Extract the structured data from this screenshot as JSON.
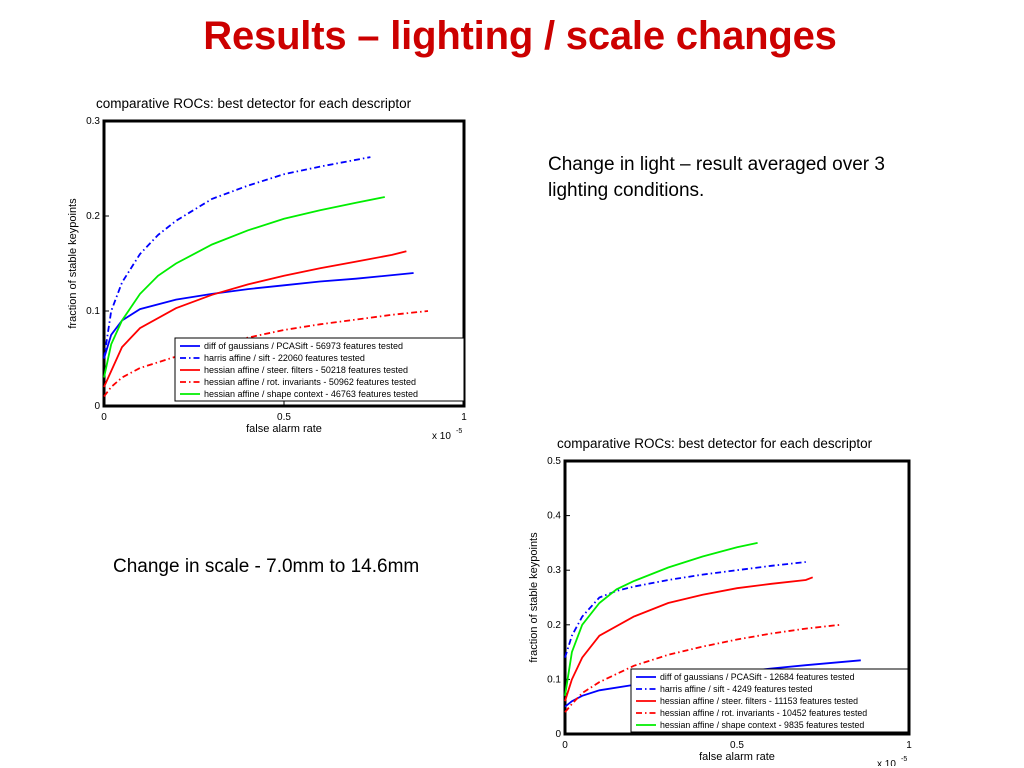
{
  "slide": {
    "title": "Results – lighting / scale changes",
    "caption_light": "Change in light – result averaged over 3 lighting conditions.",
    "caption_scale": "Change in scale - 7.0mm to 14.6mm"
  },
  "colors": {
    "title": "#cc0000",
    "blue": "#0000ff",
    "red": "#ff0000",
    "green": "#00ee00"
  },
  "chart_data": [
    {
      "type": "line",
      "title": "comparative ROCs: best detector for each descriptor",
      "xlabel": "false alarm rate",
      "ylabel": "fraction of stable keypoints",
      "x_multiplier": "x 10",
      "x_multiplier_exp": "-5",
      "xlim": [
        0,
        1
      ],
      "ylim": [
        0,
        0.3
      ],
      "xticks": [
        "0",
        "0.5",
        "1"
      ],
      "yticks": [
        "0",
        "0.1",
        "0.2",
        "0.3"
      ],
      "legend_position": "bottom-right",
      "series": [
        {
          "name": "diff of gaussians / PCASift - 56973 features tested",
          "color": "#0000ff",
          "style": "solid",
          "x": [
            0,
            0.02,
            0.05,
            0.1,
            0.2,
            0.3,
            0.4,
            0.5,
            0.6,
            0.7,
            0.86
          ],
          "y": [
            0.05,
            0.075,
            0.09,
            0.102,
            0.112,
            0.118,
            0.123,
            0.127,
            0.131,
            0.134,
            0.14
          ]
        },
        {
          "name": "harris affine / sift - 22060 features tested",
          "color": "#0000ff",
          "style": "dashdot",
          "x": [
            0,
            0.02,
            0.05,
            0.1,
            0.15,
            0.2,
            0.3,
            0.4,
            0.5,
            0.6,
            0.74
          ],
          "y": [
            0.05,
            0.1,
            0.13,
            0.16,
            0.18,
            0.195,
            0.218,
            0.232,
            0.244,
            0.252,
            0.262
          ]
        },
        {
          "name": "hessian affine / steer. filters - 50218 features tested",
          "color": "#ff0000",
          "style": "solid",
          "x": [
            0,
            0.05,
            0.1,
            0.2,
            0.3,
            0.4,
            0.5,
            0.6,
            0.7,
            0.8,
            0.84
          ],
          "y": [
            0.02,
            0.062,
            0.082,
            0.103,
            0.117,
            0.128,
            0.137,
            0.145,
            0.152,
            0.159,
            0.163
          ]
        },
        {
          "name": "hessian affine / rot. invariants - 50962 features tested",
          "color": "#ff0000",
          "style": "dashdot",
          "x": [
            0,
            0.02,
            0.05,
            0.1,
            0.2,
            0.3,
            0.4,
            0.5,
            0.6,
            0.7,
            0.8,
            0.9
          ],
          "y": [
            0.01,
            0.02,
            0.03,
            0.04,
            0.052,
            0.063,
            0.072,
            0.08,
            0.086,
            0.091,
            0.096,
            0.1
          ]
        },
        {
          "name": "hessian affine / shape context - 46763 features tested",
          "color": "#00ee00",
          "style": "solid",
          "x": [
            0,
            0.02,
            0.05,
            0.1,
            0.15,
            0.2,
            0.3,
            0.4,
            0.5,
            0.6,
            0.7,
            0.78
          ],
          "y": [
            0.03,
            0.065,
            0.09,
            0.118,
            0.137,
            0.15,
            0.17,
            0.185,
            0.197,
            0.206,
            0.214,
            0.22
          ]
        }
      ]
    },
    {
      "type": "line",
      "title": "comparative ROCs: best detector for each descriptor",
      "xlabel": "false alarm rate",
      "ylabel": "fraction of stable keypoints",
      "x_multiplier": "x 10",
      "x_multiplier_exp": "-5",
      "xlim": [
        0,
        1
      ],
      "ylim": [
        0,
        0.5
      ],
      "xticks": [
        "0",
        "0.5",
        "1"
      ],
      "yticks": [
        "0",
        "0.1",
        "0.2",
        "0.3",
        "0.4",
        "0.5"
      ],
      "legend_position": "bottom-right",
      "series": [
        {
          "name": "diff of gaussians / PCASift - 12684 features tested",
          "color": "#0000ff",
          "style": "solid",
          "x": [
            0,
            0.02,
            0.05,
            0.1,
            0.2,
            0.3,
            0.4,
            0.5,
            0.6,
            0.7,
            0.86
          ],
          "y": [
            0.05,
            0.06,
            0.07,
            0.08,
            0.09,
            0.097,
            0.105,
            0.113,
            0.12,
            0.126,
            0.135
          ]
        },
        {
          "name": "harris affine / sift - 4249 features tested",
          "color": "#0000ff",
          "style": "dashdot",
          "x": [
            0,
            0.02,
            0.05,
            0.1,
            0.15,
            0.2,
            0.3,
            0.4,
            0.5,
            0.6,
            0.7
          ],
          "y": [
            0.14,
            0.18,
            0.215,
            0.25,
            0.262,
            0.27,
            0.282,
            0.292,
            0.3,
            0.308,
            0.315
          ]
        },
        {
          "name": "hessian affine / steer. filters - 11153 features tested",
          "color": "#ff0000",
          "style": "solid",
          "x": [
            0,
            0.02,
            0.05,
            0.1,
            0.2,
            0.3,
            0.4,
            0.5,
            0.6,
            0.7,
            0.72
          ],
          "y": [
            0.06,
            0.1,
            0.14,
            0.18,
            0.215,
            0.24,
            0.255,
            0.267,
            0.275,
            0.282,
            0.287
          ]
        },
        {
          "name": "hessian affine / rot. invariants - 10452 features tested",
          "color": "#ff0000",
          "style": "dashdot",
          "x": [
            0,
            0.02,
            0.05,
            0.1,
            0.2,
            0.3,
            0.4,
            0.5,
            0.6,
            0.7,
            0.8
          ],
          "y": [
            0.04,
            0.055,
            0.075,
            0.095,
            0.125,
            0.145,
            0.16,
            0.173,
            0.184,
            0.193,
            0.2
          ]
        },
        {
          "name": "hessian affine / shape context - 9835 features tested",
          "color": "#00ee00",
          "style": "solid",
          "x": [
            0,
            0.02,
            0.05,
            0.1,
            0.15,
            0.2,
            0.3,
            0.4,
            0.5,
            0.56
          ],
          "y": [
            0.07,
            0.15,
            0.2,
            0.24,
            0.265,
            0.28,
            0.305,
            0.325,
            0.342,
            0.35
          ]
        }
      ]
    }
  ]
}
